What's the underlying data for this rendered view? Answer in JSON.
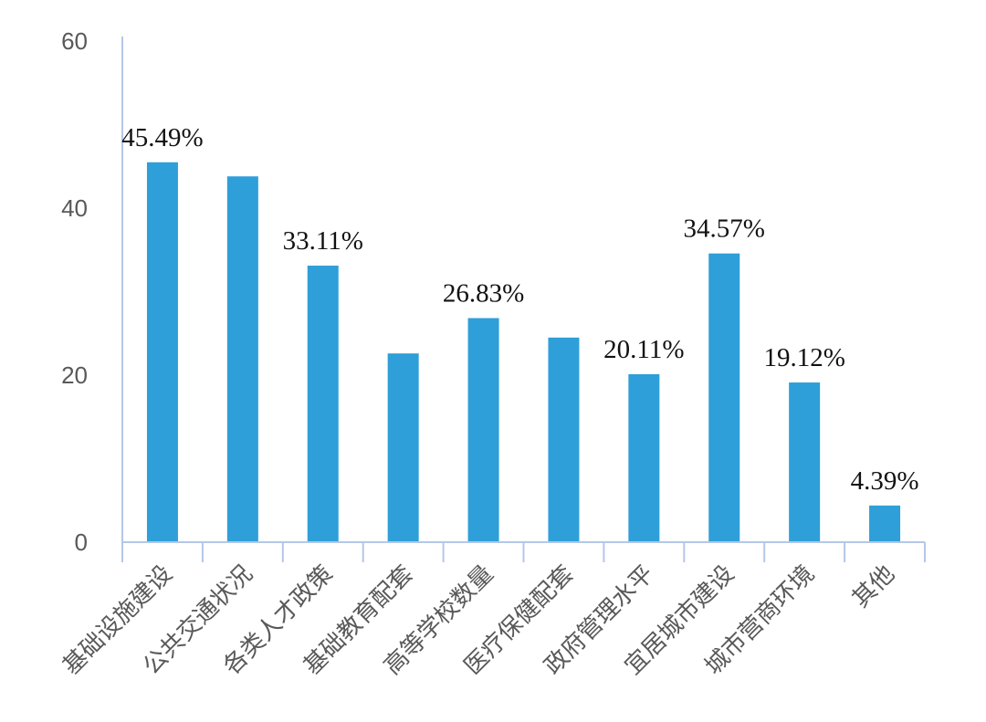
{
  "chart_data": {
    "type": "bar",
    "categories": [
      "基础设施建设",
      "公共交通状况",
      "各类人才政策",
      "基础教育配套",
      "高等学校数量",
      "医疗保健配套",
      "政府管理水平",
      "宜居城市建设",
      "城市营商环境",
      "其他"
    ],
    "values": [
      45.49,
      43.8,
      33.11,
      22.6,
      26.83,
      24.5,
      20.11,
      34.57,
      19.12,
      4.39
    ],
    "data_labels": [
      "45.49%",
      "",
      "33.11%",
      "",
      "26.83%",
      "",
      "20.11%",
      "34.57%",
      "19.12%",
      "4.39%"
    ],
    "ylim": [
      0,
      60
    ],
    "yticks": [
      0,
      20,
      40,
      60
    ],
    "title": "",
    "xlabel": "",
    "ylabel": "",
    "grid": false,
    "colors": {
      "bar": "#2E9FD8",
      "axis": "#B4C7E7",
      "tick_text": "#595959",
      "label_text": "#111111"
    }
  }
}
